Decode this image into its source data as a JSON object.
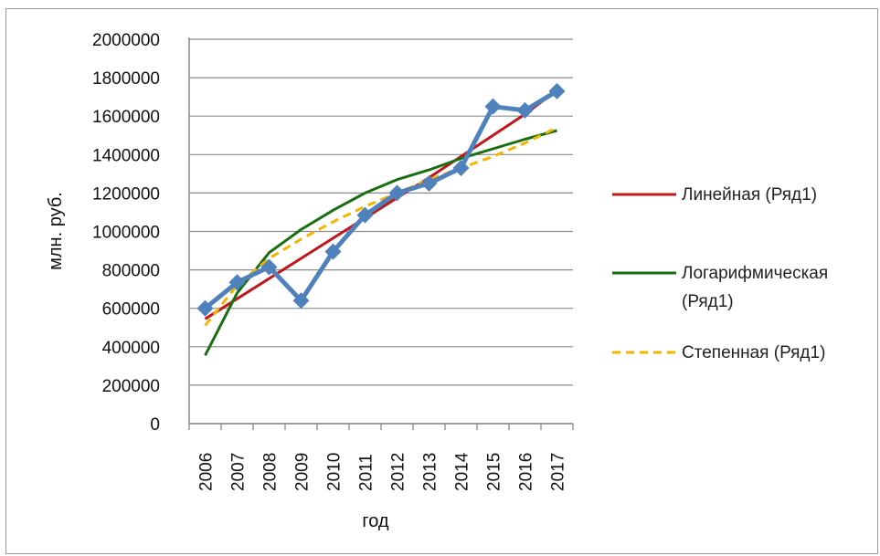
{
  "chart_data": {
    "type": "line",
    "xlabel": "год",
    "ylabel": "млн. руб.",
    "categories": [
      "2006",
      "2007",
      "2008",
      "2009",
      "2010",
      "2011",
      "2012",
      "2013",
      "2014",
      "2015",
      "2016",
      "2017"
    ],
    "ylim": [
      0,
      2000000
    ],
    "yticks": [
      "0",
      "200000",
      "400000",
      "600000",
      "800000",
      "1000000",
      "1200000",
      "1400000",
      "1600000",
      "1800000",
      "2000000"
    ],
    "grid": "horizontal",
    "legend_position": "right",
    "series": [
      {
        "values": [
          600000,
          735000,
          815000,
          640000,
          895000,
          1085000,
          1200000,
          1250000,
          1330000,
          1650000,
          1630000,
          1730000
        ],
        "color": "#4f81bd",
        "style": "solid-with-diamond-markers"
      }
    ],
    "trendlines": [
      {
        "name": "Линейная (Ряд1)",
        "name_lines": [
          "Линейная (Ряд1)"
        ],
        "type": "linear",
        "color": "#c0161c",
        "dash": "solid",
        "values": [
          545000,
          650000,
          755000,
          860000,
          965000,
          1070000,
          1175000,
          1280000,
          1390000,
          1500000,
          1610000,
          1735000
        ]
      },
      {
        "name": "Логарифмическая (Ряд1)",
        "name_lines": [
          "Логарифмическая",
          "(Ряд1)"
        ],
        "type": "logarithmic",
        "color": "#1a6e12",
        "dash": "solid",
        "values": [
          355000,
          680000,
          890000,
          1010000,
          1110000,
          1200000,
          1270000,
          1320000,
          1380000,
          1430000,
          1480000,
          1525000
        ]
      },
      {
        "name": "Степенная (Ряд1)",
        "name_lines": [
          "Степенная (Ряд1)"
        ],
        "type": "power",
        "color": "#f4b400",
        "dash": "dashed",
        "values": [
          510000,
          720000,
          860000,
          960000,
          1050000,
          1130000,
          1200000,
          1270000,
          1330000,
          1390000,
          1460000,
          1540000
        ]
      }
    ]
  }
}
